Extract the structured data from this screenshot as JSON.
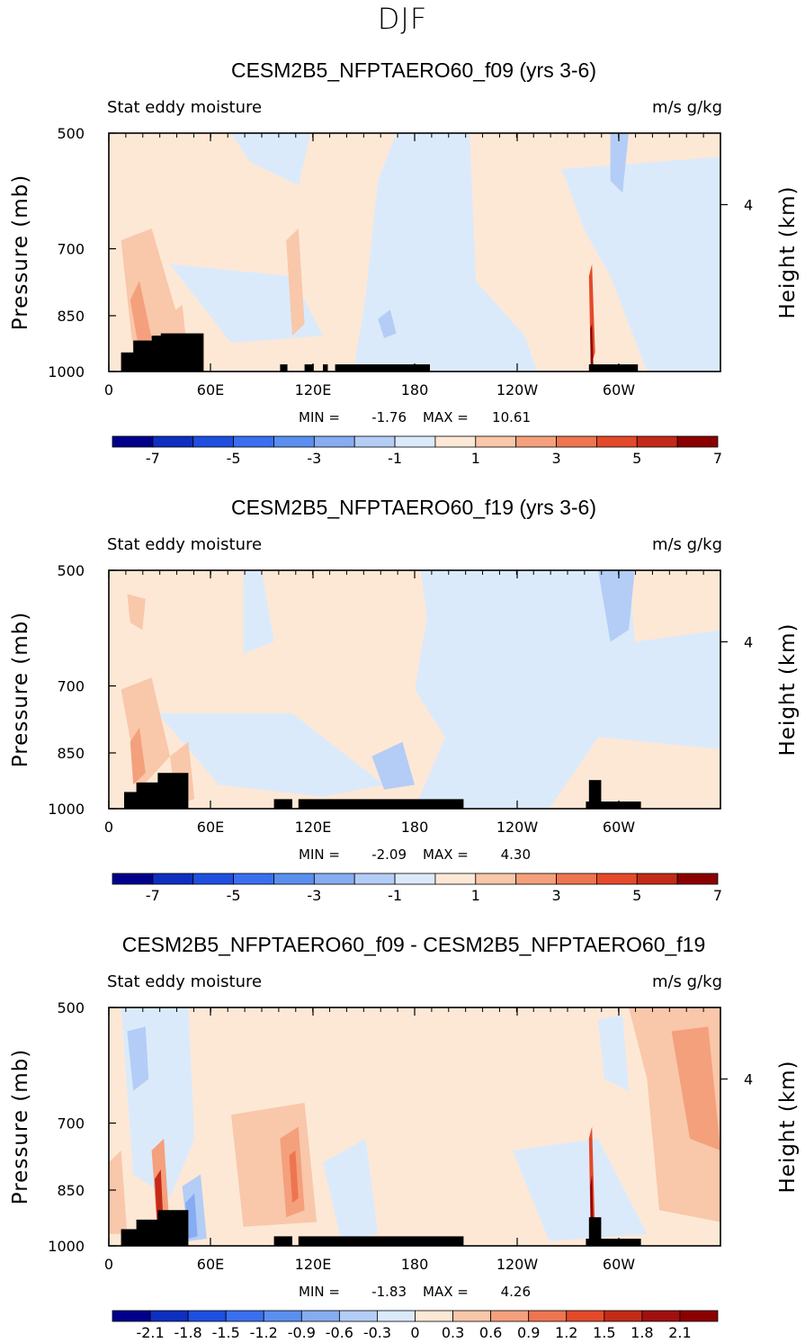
{
  "figure": {
    "title": "DJF"
  },
  "chart_data": [
    {
      "type": "heatmap",
      "title": "CESM2B5_NFPTAERO60_f09 (yrs 3-6)",
      "variable_label": "Stat eddy moisture",
      "units_label": "m/s g/kg",
      "ylabel": "Pressure (mb)",
      "ylabel_right": "Height (km)",
      "x_ticks": [
        "0",
        "60E",
        "120E",
        "180",
        "120W",
        "60W"
      ],
      "y_ticks": [
        "500",
        "700",
        "850",
        "1000"
      ],
      "y_right_ticks": [
        "4"
      ],
      "min_text": "MIN =",
      "min_value": "-1.76",
      "max_text": "MAX =",
      "max_value": "10.61",
      "colorbar_labels": [
        "-7",
        "-5",
        "-3",
        "-1",
        "1",
        "3",
        "5",
        "7"
      ],
      "colorbar_levels": [
        -9,
        -8,
        -7,
        -6,
        -5,
        -4,
        -3,
        -2,
        -1,
        0,
        1,
        2,
        3,
        4,
        5,
        6,
        7,
        8,
        9
      ],
      "colorbar_colors": [
        "#00008b",
        "#0f2fc0",
        "#1e4fe0",
        "#3a6ff0",
        "#5a8ff0",
        "#86acf2",
        "#b4cdf6",
        "#dbeafb",
        "#fde8d6",
        "#f9c7aa",
        "#f4a07c",
        "#ee7550",
        "#e44a2a",
        "#c42a18",
        "#8b0000"
      ],
      "min_value_num": -1.76,
      "max_value_num": 10.61
    },
    {
      "type": "heatmap",
      "title": "CESM2B5_NFPTAERO60_f19 (yrs 3-6)",
      "variable_label": "Stat eddy moisture",
      "units_label": "m/s g/kg",
      "ylabel": "Pressure (mb)",
      "ylabel_right": "Height (km)",
      "x_ticks": [
        "0",
        "60E",
        "120E",
        "180",
        "120W",
        "60W"
      ],
      "y_ticks": [
        "500",
        "700",
        "850",
        "1000"
      ],
      "y_right_ticks": [
        "4"
      ],
      "min_text": "MIN =",
      "min_value": "-2.09",
      "max_text": "MAX =",
      "max_value": "4.30",
      "colorbar_labels": [
        "-7",
        "-5",
        "-3",
        "-1",
        "1",
        "3",
        "5",
        "7"
      ],
      "colorbar_colors": [
        "#00008b",
        "#0f2fc0",
        "#1e4fe0",
        "#3a6ff0",
        "#5a8ff0",
        "#86acf2",
        "#b4cdf6",
        "#dbeafb",
        "#fde8d6",
        "#f9c7aa",
        "#f4a07c",
        "#ee7550",
        "#e44a2a",
        "#c42a18",
        "#8b0000"
      ],
      "min_value_num": -2.09,
      "max_value_num": 4.3
    },
    {
      "type": "heatmap",
      "title": "CESM2B5_NFPTAERO60_f09 - CESM2B5_NFPTAERO60_f19",
      "variable_label": "Stat eddy moisture",
      "units_label": "m/s g/kg",
      "ylabel": "Pressure (mb)",
      "ylabel_right": "Height (km)",
      "x_ticks": [
        "0",
        "60E",
        "120E",
        "180",
        "120W",
        "60W"
      ],
      "y_ticks": [
        "500",
        "700",
        "850",
        "1000"
      ],
      "y_right_ticks": [
        "4"
      ],
      "min_text": "MIN =",
      "min_value": "-1.83",
      "max_text": "MAX =",
      "max_value": "4.26",
      "colorbar_labels": [
        "-2.1",
        "-1.8",
        "-1.5",
        "-1.2",
        "-0.9",
        "-0.6",
        "-0.3",
        "0",
        "0.3",
        "0.6",
        "0.9",
        "1.2",
        "1.5",
        "1.8",
        "2.1"
      ],
      "colorbar_colors": [
        "#00008b",
        "#0f2fc0",
        "#1e4fe0",
        "#3a6ff0",
        "#5a8ff0",
        "#86acf2",
        "#b4cdf6",
        "#dbeafb",
        "#fde8d6",
        "#f9c7aa",
        "#f4a07c",
        "#ee7550",
        "#e44a2a",
        "#c42a18",
        "#a01010",
        "#8b0000"
      ],
      "min_value_num": -1.83,
      "max_value_num": 4.26
    }
  ]
}
